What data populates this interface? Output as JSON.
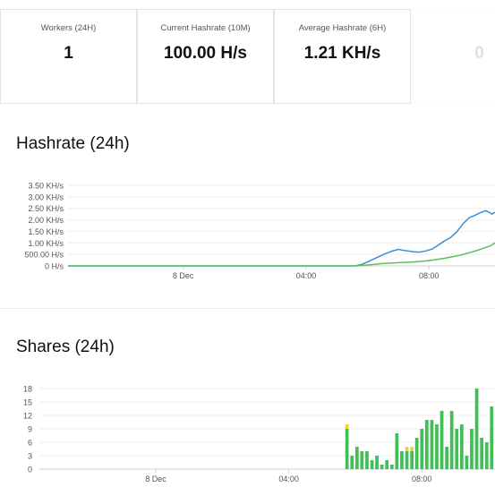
{
  "stats": [
    {
      "label": "Workers (24H)",
      "value": "1"
    },
    {
      "label": "Current Hashrate (10M)",
      "value": "100.00 H/s"
    },
    {
      "label": "Average Hashrate (6H)",
      "value": "1.21 KH/s"
    },
    {
      "label": "",
      "value": "0"
    }
  ],
  "hashrate_section": {
    "title": "Hashrate (24h)"
  },
  "shares_section": {
    "title": "Shares (24h)"
  },
  "colors": {
    "current": "#3a8fd8",
    "average": "#5cc05c",
    "shares_green": "#3fbf55",
    "shares_yellow": "#ecd33c",
    "grid": "#eeeeee"
  },
  "chart_data": [
    {
      "type": "line",
      "title": "Hashrate (24h)",
      "y_ticks": [
        "0 H/s",
        "500.00 H/s",
        "1.00 KH/s",
        "1.50 KH/s",
        "2.00 KH/s",
        "2.50 KH/s",
        "3.00 KH/s",
        "3.50 KH/s"
      ],
      "x_ticks": [
        "8 Dec",
        "04:00",
        "08:00"
      ],
      "x_tick_hours": [
        0,
        4,
        8
      ],
      "ylim": [
        0,
        3500
      ],
      "xlim": [
        -3.75,
        10.15
      ],
      "series": [
        {
          "color": "#3a8fd8",
          "points": [
            [
              -3.75,
              0
            ],
            [
              5.6,
              0
            ],
            [
              5.8,
              60
            ],
            [
              6.0,
              170
            ],
            [
              6.2,
              300
            ],
            [
              6.4,
              420
            ],
            [
              6.6,
              540
            ],
            [
              6.8,
              640
            ],
            [
              7.0,
              720
            ],
            [
              7.15,
              680
            ],
            [
              7.3,
              650
            ],
            [
              7.5,
              610
            ],
            [
              7.7,
              600
            ],
            [
              7.9,
              650
            ],
            [
              8.1,
              730
            ],
            [
              8.3,
              900
            ],
            [
              8.5,
              1080
            ],
            [
              8.7,
              1230
            ],
            [
              8.9,
              1470
            ],
            [
              9.1,
              1820
            ],
            [
              9.3,
              2080
            ],
            [
              9.5,
              2200
            ],
            [
              9.7,
              2330
            ],
            [
              9.85,
              2400
            ],
            [
              10.0,
              2300
            ],
            [
              10.05,
              2250
            ],
            [
              10.15,
              2330
            ]
          ]
        },
        {
          "color": "#5cc05c",
          "points": [
            [
              -3.75,
              0
            ],
            [
              5.6,
              0
            ],
            [
              6.0,
              40
            ],
            [
              6.5,
              100
            ],
            [
              7.0,
              140
            ],
            [
              7.5,
              170
            ],
            [
              8.0,
              230
            ],
            [
              8.5,
              330
            ],
            [
              9.0,
              460
            ],
            [
              9.5,
              640
            ],
            [
              10.0,
              870
            ],
            [
              10.15,
              1000
            ]
          ]
        }
      ]
    },
    {
      "type": "bar",
      "title": "Shares (24h)",
      "y_ticks": [
        "0",
        "3",
        "6",
        "9",
        "12",
        "15",
        "18"
      ],
      "x_ticks": [
        "8 Dec",
        "04:00",
        "08:00"
      ],
      "x_tick_hours": [
        0,
        4,
        8
      ],
      "ylim": [
        0,
        18
      ],
      "xlim": [
        -3.5,
        10.2
      ],
      "bar_width_hours": 0.1,
      "bars": [
        {
          "x": 5.75,
          "green": 9,
          "yellow": 1
        },
        {
          "x": 5.9,
          "green": 3,
          "yellow": 0
        },
        {
          "x": 6.05,
          "green": 5,
          "yellow": 0
        },
        {
          "x": 6.2,
          "green": 4,
          "yellow": 0
        },
        {
          "x": 6.35,
          "green": 4,
          "yellow": 0
        },
        {
          "x": 6.5,
          "green": 2,
          "yellow": 0
        },
        {
          "x": 6.65,
          "green": 3,
          "yellow": 0
        },
        {
          "x": 6.8,
          "green": 1,
          "yellow": 0
        },
        {
          "x": 6.95,
          "green": 2,
          "yellow": 0
        },
        {
          "x": 7.1,
          "green": 1,
          "yellow": 0
        },
        {
          "x": 7.25,
          "green": 8,
          "yellow": 0
        },
        {
          "x": 7.4,
          "green": 4,
          "yellow": 0
        },
        {
          "x": 7.55,
          "green": 4,
          "yellow": 1
        },
        {
          "x": 7.7,
          "green": 4,
          "yellow": 1
        },
        {
          "x": 7.85,
          "green": 7,
          "yellow": 0
        },
        {
          "x": 8.0,
          "green": 9,
          "yellow": 0
        },
        {
          "x": 8.15,
          "green": 11,
          "yellow": 0
        },
        {
          "x": 8.3,
          "green": 11,
          "yellow": 0
        },
        {
          "x": 8.45,
          "green": 10,
          "yellow": 0
        },
        {
          "x": 8.6,
          "green": 13,
          "yellow": 0
        },
        {
          "x": 8.75,
          "green": 5,
          "yellow": 0
        },
        {
          "x": 8.9,
          "green": 13,
          "yellow": 0
        },
        {
          "x": 9.05,
          "green": 9,
          "yellow": 0
        },
        {
          "x": 9.2,
          "green": 10,
          "yellow": 0
        },
        {
          "x": 9.35,
          "green": 3,
          "yellow": 0
        },
        {
          "x": 9.5,
          "green": 9,
          "yellow": 0
        },
        {
          "x": 9.65,
          "green": 18,
          "yellow": 0
        },
        {
          "x": 9.8,
          "green": 7,
          "yellow": 0
        },
        {
          "x": 9.95,
          "green": 6,
          "yellow": 0
        },
        {
          "x": 10.1,
          "green": 14,
          "yellow": 0
        }
      ]
    }
  ]
}
